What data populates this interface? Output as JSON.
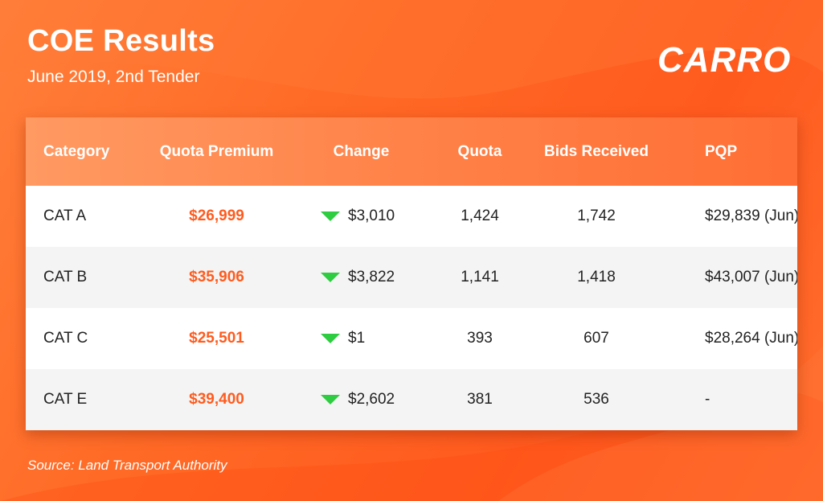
{
  "header": {
    "title": "COE Results",
    "subtitle": "June 2019, 2nd Tender",
    "logo": "CARRO"
  },
  "footer": {
    "source": "Source: Land Transport Authority"
  },
  "colors": {
    "premium": "#ff5b1e",
    "change_down": "#2ecc40",
    "background": "#ff6a26"
  },
  "chart_data": {
    "type": "table",
    "title": "COE Results",
    "subtitle": "June 2019, 2nd Tender",
    "columns": [
      "Category",
      "Quota Premium",
      "Change",
      "Quota",
      "Bids Received",
      "PQP"
    ],
    "rows": [
      {
        "category": "CAT A",
        "premium": "$26,999",
        "change": "$3,010",
        "change_direction": "down",
        "quota": "1,424",
        "bids": "1,742",
        "pqp": "$29,839 (Jun)"
      },
      {
        "category": "CAT B",
        "premium": "$35,906",
        "change": "$3,822",
        "change_direction": "down",
        "quota": "1,141",
        "bids": "1,418",
        "pqp": "$43,007 (Jun)"
      },
      {
        "category": "CAT C",
        "premium": "$25,501",
        "change": "$1",
        "change_direction": "down",
        "quota": "393",
        "bids": "607",
        "pqp": "$28,264 (Jun)"
      },
      {
        "category": "CAT E",
        "premium": "$39,400",
        "change": "$2,602",
        "change_direction": "down",
        "quota": "381",
        "bids": "536",
        "pqp": "-"
      }
    ]
  }
}
